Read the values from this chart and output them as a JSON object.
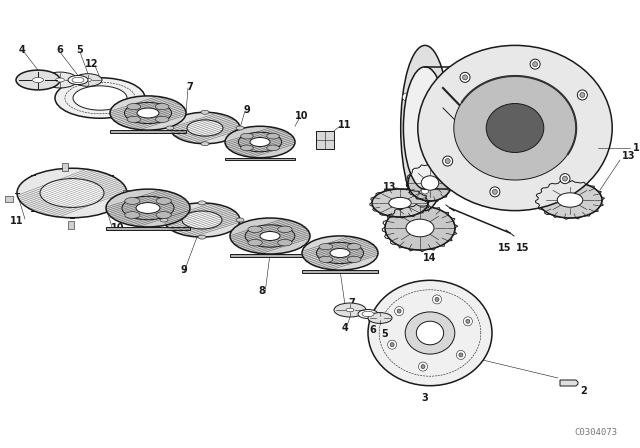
{
  "bg_color": "#ffffff",
  "line_color": "#1a1a1a",
  "watermark": "C0304073",
  "fig_width": 6.4,
  "fig_height": 4.48,
  "dpi": 100
}
